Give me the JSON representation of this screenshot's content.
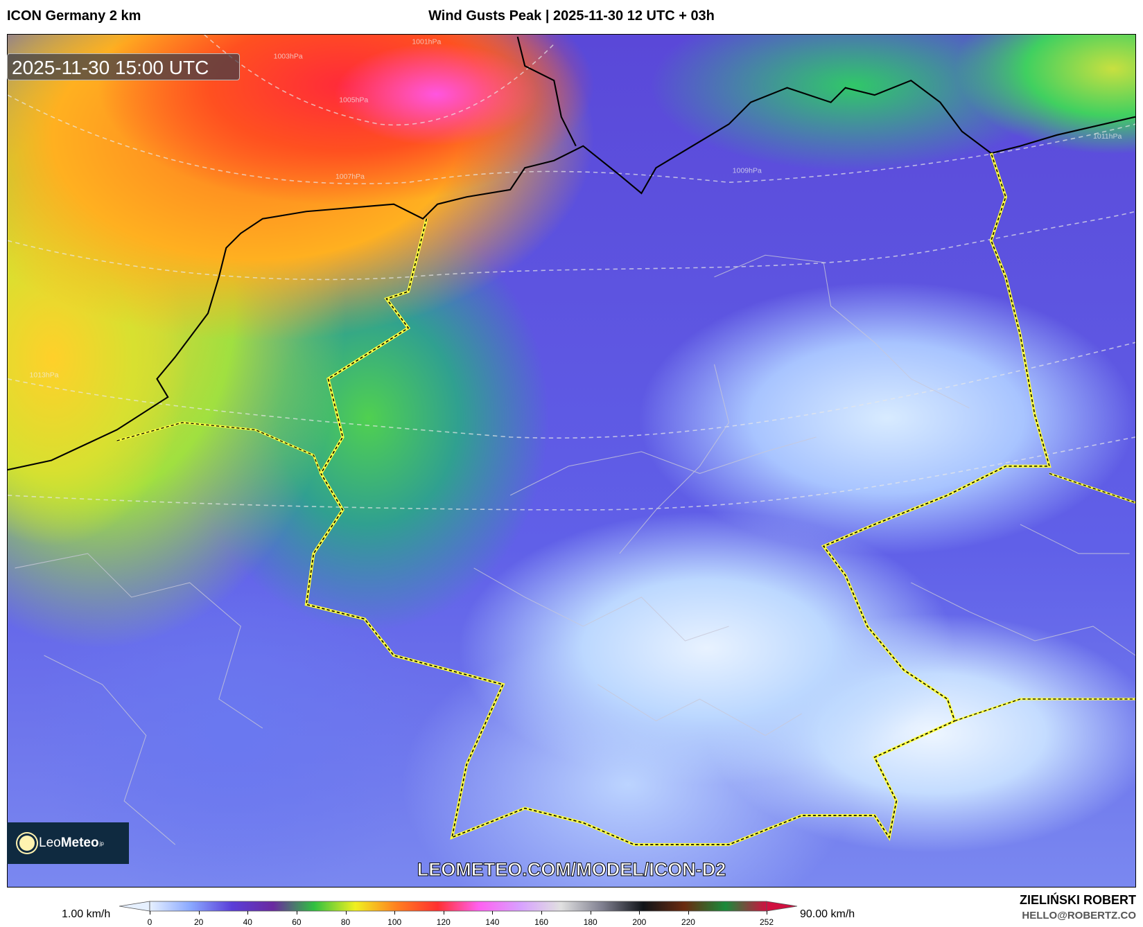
{
  "header": {
    "model": "ICON Germany 2 km",
    "title": "Wind Gusts Peak | 2025-11-30 12 UTC + 03h"
  },
  "map": {
    "valid_time": "2025-11-30 15:00 UTC",
    "watermark": "LEOMETEO.COM/MODEL/ICON-D2",
    "logo": {
      "part1": "Leo",
      "part2": "Meteo",
      "suffix": "jp"
    },
    "isobar_labels": [
      "1001hPa",
      "1003hPa",
      "1005hPa",
      "1007hPa",
      "1009hPa",
      "1011hPa",
      "1013hPa"
    ],
    "colors": {
      "coastline": "#000000",
      "germany_border": "#ffff40",
      "admin_borders": "#cccccc",
      "isobars": "#e8e8e8"
    }
  },
  "colorbar": {
    "min_label": "1.00 km/h",
    "max_label": "90.00 km/h",
    "ticks": [
      "0",
      "20",
      "40",
      "60",
      "80",
      "100",
      "120",
      "140",
      "160",
      "180",
      "200",
      "220",
      "252"
    ],
    "tick_values": [
      0,
      20,
      40,
      60,
      80,
      100,
      120,
      140,
      160,
      180,
      200,
      220,
      252
    ],
    "range": [
      0,
      252
    ],
    "colors": [
      "#e6f0ff",
      "#8aa8ff",
      "#5a3ed8",
      "#6a2aa0",
      "#30c040",
      "#f0f020",
      "#ff8020",
      "#ff3030",
      "#ff60f0",
      "#d8a0ff",
      "#e0e0e0",
      "#808090",
      "#101418",
      "#6a2a10",
      "#1a8a3a",
      "#d01040"
    ]
  },
  "credit": {
    "author": "ZIELIŃSKI ROBERT",
    "email": "HELLO@ROBERTZ.CO"
  }
}
